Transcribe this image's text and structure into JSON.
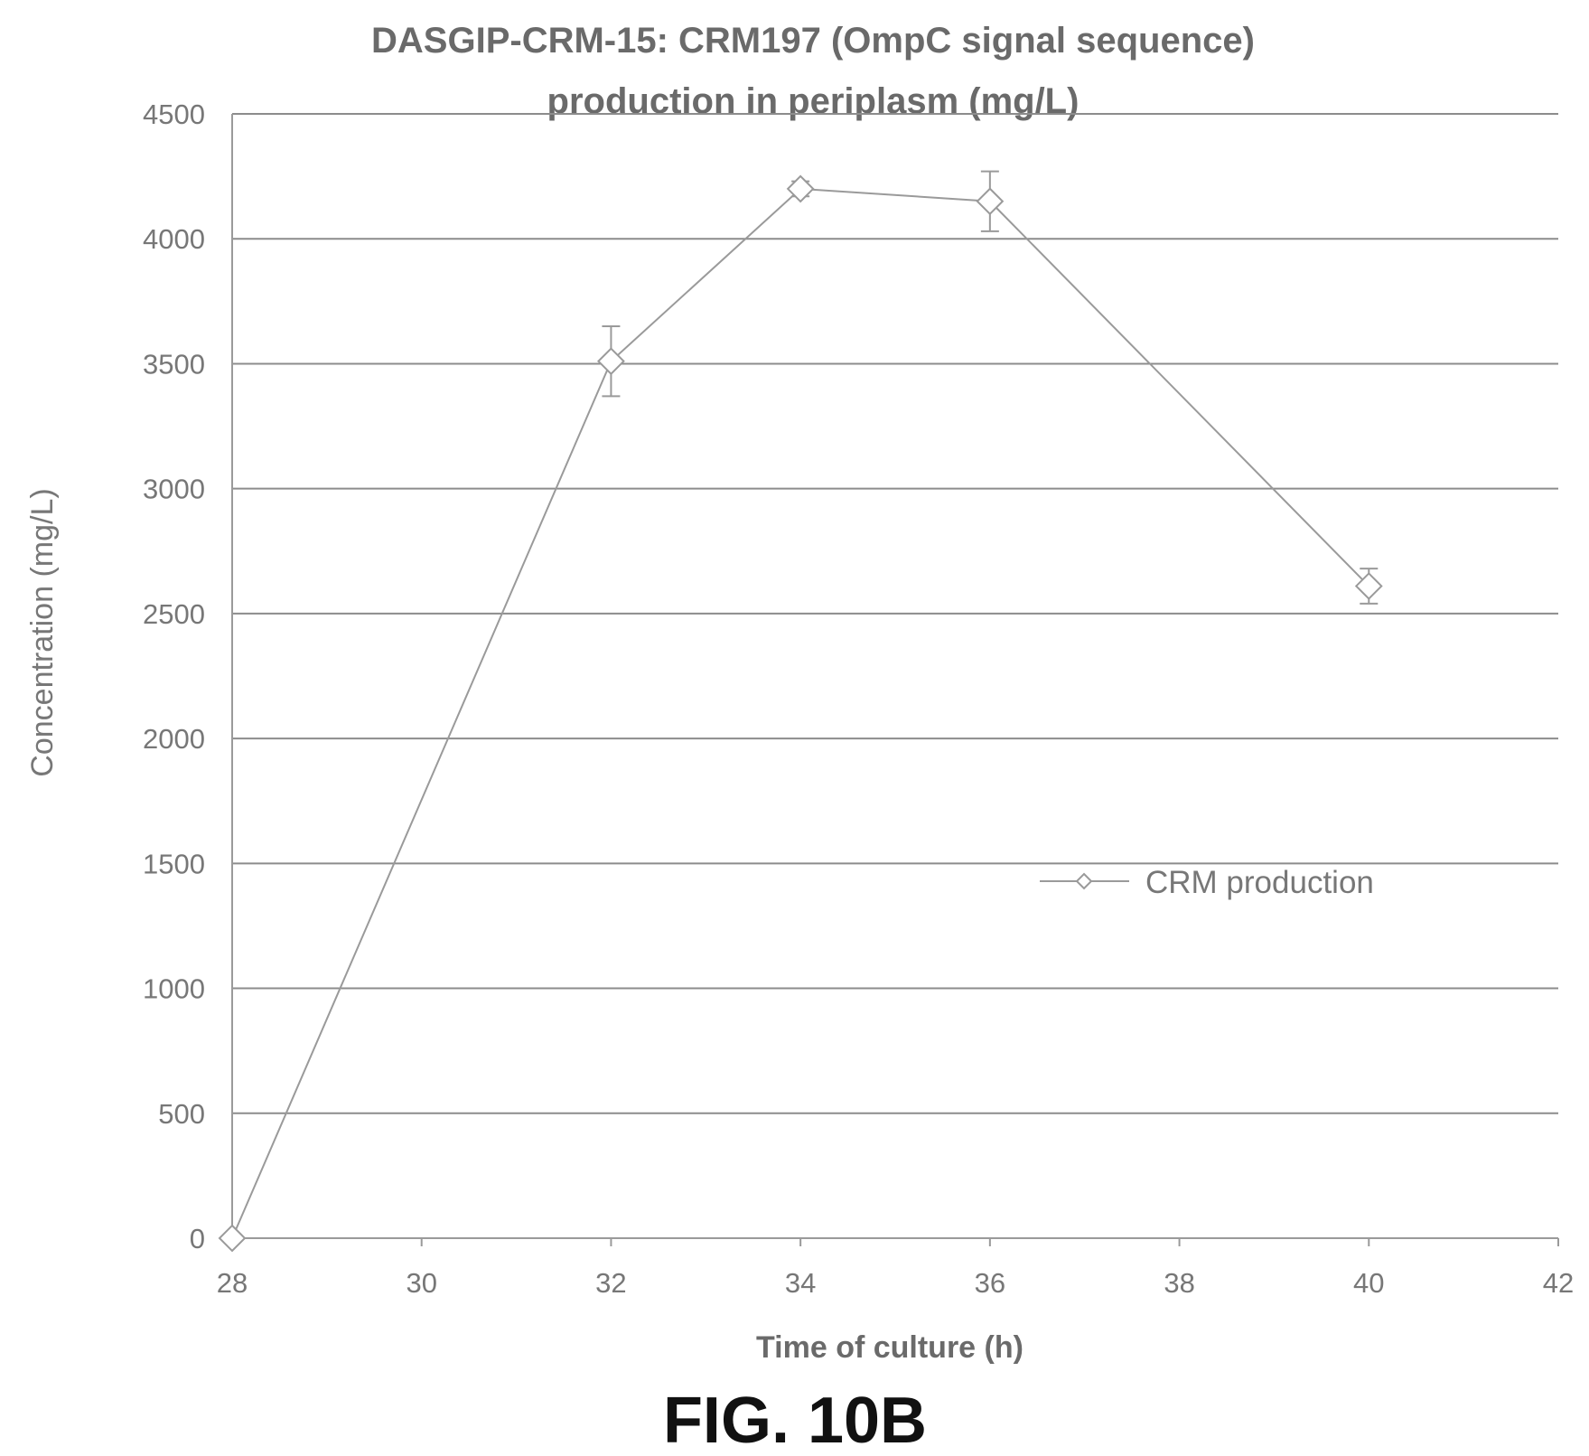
{
  "chart_data": {
    "type": "line",
    "title_lines": [
      "DASGIP-CRM-15: CRM197 (OmpC signal sequence)",
      "production in periplasm (mg/L)"
    ],
    "xlabel": "Time of culture (h)",
    "ylabel": "Concentration (mg/L)",
    "xlim": [
      28,
      42
    ],
    "ylim": [
      0,
      4500
    ],
    "x_ticks": [
      28,
      30,
      32,
      34,
      36,
      38,
      40,
      42
    ],
    "y_ticks": [
      0,
      500,
      1000,
      1500,
      2000,
      2500,
      3000,
      3500,
      4000,
      4500
    ],
    "grid": "horizontal",
    "legend_position": "right",
    "series": [
      {
        "name": "CRM production",
        "marker": "diamond",
        "color": "#9a9a9a",
        "x": [
          28,
          32,
          34,
          36,
          40
        ],
        "values": [
          0,
          3510,
          4200,
          4150,
          2610
        ],
        "error": [
          0,
          140,
          30,
          120,
          70
        ]
      }
    ]
  },
  "figure_label": "FIG. 10B"
}
